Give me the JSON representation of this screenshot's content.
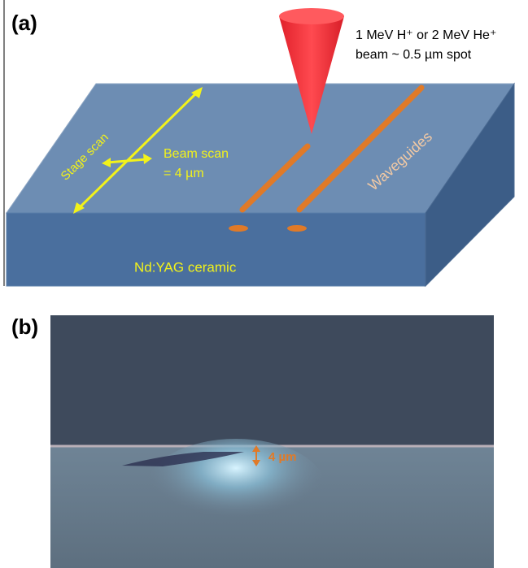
{
  "panel_a": {
    "label": "(a)",
    "beam_text": [
      "1 MeV H⁺ or 2 MeV He⁺",
      "beam ~ 0.5 µm spot"
    ],
    "stage_scan": "Stage scan",
    "beam_scan": [
      "Beam scan",
      "= 4 µm"
    ],
    "waveguides": "Waveguides",
    "material": "Nd:YAG ceramic"
  },
  "panel_b": {
    "label": "(b)",
    "scale": "4 µm"
  }
}
